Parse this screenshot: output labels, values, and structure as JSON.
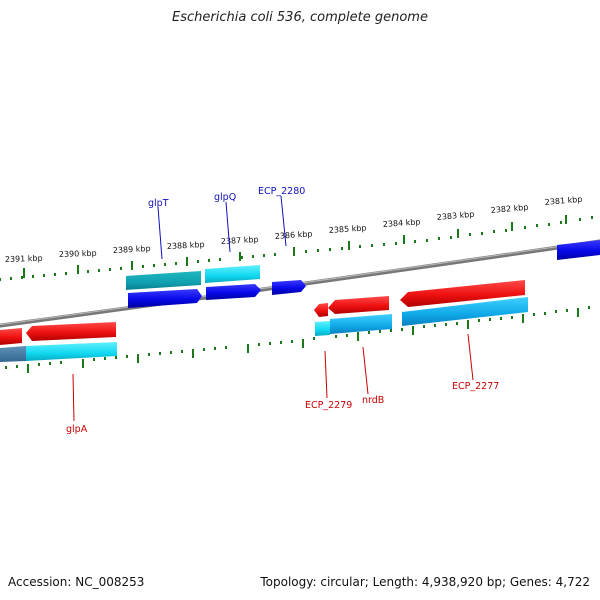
{
  "title": "Escherichia coli 536, complete genome",
  "footer": {
    "accession": "Accession: NC_008253",
    "summary": "Topology: circular; Length: 4,938,920 bp; Genes: 4,722"
  },
  "colors": {
    "backbone": "#888888",
    "tick": "#1a7a1a",
    "forward_gene": "#0a0ae0",
    "reverse_gene": "#ee1111",
    "cds_cyan": "#10d8f0",
    "cds_teal": "#10b0b8",
    "label_blue": "#1010c0",
    "label_red": "#cc0000"
  },
  "scale_labels": [
    "2391 kbp",
    "2390 kbp",
    "2389 kbp",
    "2388 kbp",
    "2387 kbp",
    "2386 kbp",
    "2385 kbp",
    "2384 kbp",
    "2383 kbp",
    "2382 kbp",
    "2381 kbp"
  ],
  "gene_labels_top": [
    "glpT",
    "glpQ",
    "ECP_2280"
  ],
  "gene_labels_bottom": [
    "glpA",
    "ECP_2279",
    "nrdB",
    "ECP_2277"
  ]
}
